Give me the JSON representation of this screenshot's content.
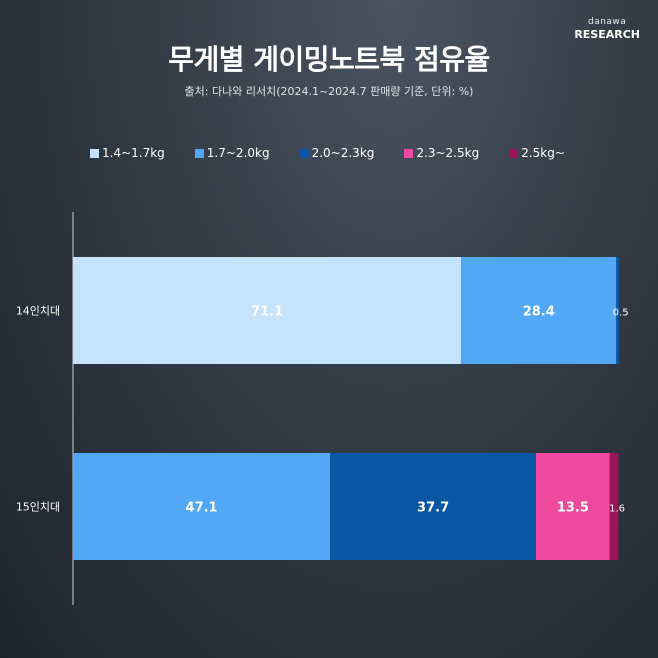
{
  "brand": {
    "line1": "danawa",
    "line2": "RESEARCH"
  },
  "chart_data": {
    "type": "bar",
    "orientation": "horizontal",
    "stacked": true,
    "title": "무게별 게이밍노트북 점유율",
    "subtitle": "출처: 다나와 리서치(2024.1~2024.7 판매량 기준, 단위: %)",
    "categories": [
      "14인치대",
      "15인치대"
    ],
    "series": [
      {
        "name": "1.4~1.7kg",
        "color": "#c6e3fc",
        "values": [
          71.1,
          0
        ]
      },
      {
        "name": "1.7~2.0kg",
        "color": "#52a8f7",
        "values": [
          28.4,
          47.1
        ]
      },
      {
        "name": "2.0~2.3kg",
        "color": "#0a56a5",
        "values": [
          0.5,
          37.7
        ]
      },
      {
        "name": "2.3~2.5kg",
        "color": "#ef4aa0",
        "values": [
          0,
          13.5
        ]
      },
      {
        "name": "2.5kg~",
        "color": "#9c1458",
        "values": [
          0,
          1.6
        ]
      }
    ],
    "labels": [
      [
        "71.1",
        "28.4",
        "0.5",
        "",
        ""
      ],
      [
        "",
        "47.1",
        "37.7",
        "13.5",
        "1.6"
      ]
    ],
    "xlim": [
      0,
      100
    ],
    "legend_position": "top",
    "grid": false
  }
}
